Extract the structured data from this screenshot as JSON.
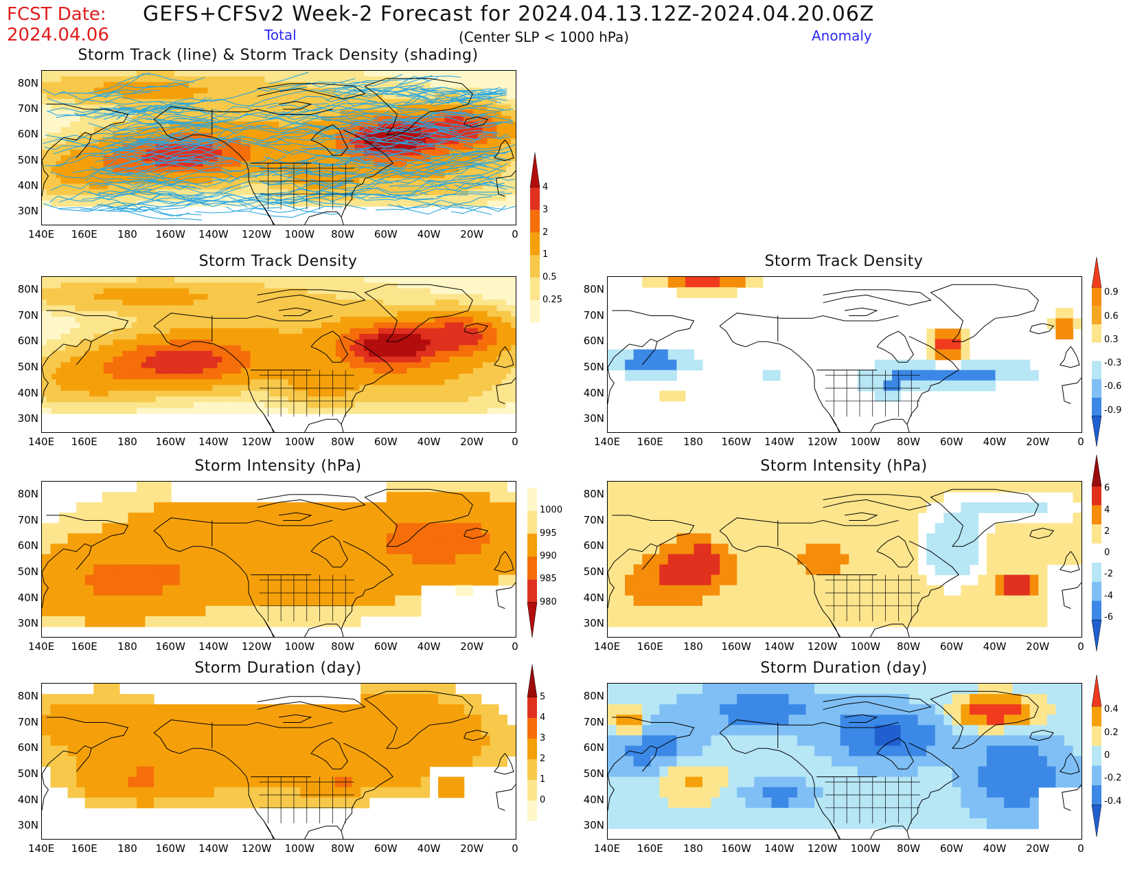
{
  "header": {
    "fcst_label": "FCST Date:",
    "fcst_date": "2024.04.06",
    "title": "GEFS+CFSv2 Week-2 Forecast for 2024.04.13.12Z-2024.04.20.06Z",
    "subtitle": "(Center SLP < 1000 hPa)",
    "total_label": "Total",
    "anomaly_label": "Anomaly"
  },
  "lat_labels": [
    "80N",
    "70N",
    "60N",
    "50N",
    "40N",
    "30N"
  ],
  "lon_labels": [
    "140E",
    "160E",
    "180",
    "160W",
    "140W",
    "120W",
    "100W",
    "80W",
    "60W",
    "40W",
    "20W",
    "0"
  ],
  "panels": [
    {
      "id": "track",
      "title": "Storm Track (line) & Storm Track Density (shading)",
      "kind": "total-density"
    },
    {
      "id": "dens_tot",
      "title": "Storm Track Density",
      "kind": "total-density"
    },
    {
      "id": "dens_anom",
      "title": "Storm Track Density",
      "kind": "anom-density"
    },
    {
      "id": "int_tot",
      "title": "Storm Intensity (hPa)",
      "kind": "total-intensity"
    },
    {
      "id": "int_anom",
      "title": "Storm Intensity (hPa)",
      "kind": "anom-intensity"
    },
    {
      "id": "dur_tot",
      "title": "Storm Duration (day)",
      "kind": "total-duration"
    },
    {
      "id": "dur_anom",
      "title": "Storm Duration (day)",
      "kind": "anom-duration"
    }
  ],
  "colorbars": {
    "density_total": {
      "labels": [
        "4",
        "3",
        "2",
        "1",
        "0.5",
        "0.25"
      ],
      "colors": [
        "#b30d0d",
        "#e0301e",
        "#f56e0a",
        "#f5a00a",
        "#f7c84a",
        "#fbe58d",
        "#fff7c8"
      ]
    },
    "density_anom": {
      "labels": [
        "0.9",
        "0.6",
        "0.3",
        "-0.3",
        "-0.6",
        "-0.9"
      ],
      "colors": [
        "#f03b1e",
        "#f58c0a",
        "#f5a623",
        "#fde58d",
        "#ffffff",
        "#b7e6f5",
        "#7fbff5",
        "#3b88e6",
        "#1f5fd0"
      ]
    },
    "intensity_total": {
      "labels": [
        "1000",
        "995",
        "990",
        "985",
        "980"
      ],
      "colors": [
        "#fff7c8",
        "#fde58d",
        "#f5a00a",
        "#f56e0a",
        "#e0301e",
        "#b30d0d"
      ]
    },
    "intensity_anom": {
      "labels": [
        "6",
        "4",
        "2",
        "0",
        "-2",
        "-4",
        "-6"
      ],
      "colors": [
        "#9b0c0c",
        "#e0301e",
        "#f58c0a",
        "#fde58d",
        "#ffffff",
        "#b7e6f5",
        "#7fbff5",
        "#3b88e6",
        "#1f5fd0"
      ]
    },
    "duration_total": {
      "labels": [
        "5",
        "4",
        "3",
        "2",
        "1",
        "0"
      ],
      "colors": [
        "#9b0c0c",
        "#e0301e",
        "#f56e0a",
        "#f5a00a",
        "#f7c84a",
        "#fde58d",
        "#fff7c8"
      ]
    },
    "duration_anom": {
      "labels": [
        "0.4",
        "0.2",
        "0",
        "-0.2",
        "-0.4"
      ],
      "colors": [
        "#f03b1e",
        "#f5a00a",
        "#fde58d",
        "#b7e6f5",
        "#7fbff5",
        "#3b88e6",
        "#1f5fd0"
      ]
    }
  }
}
